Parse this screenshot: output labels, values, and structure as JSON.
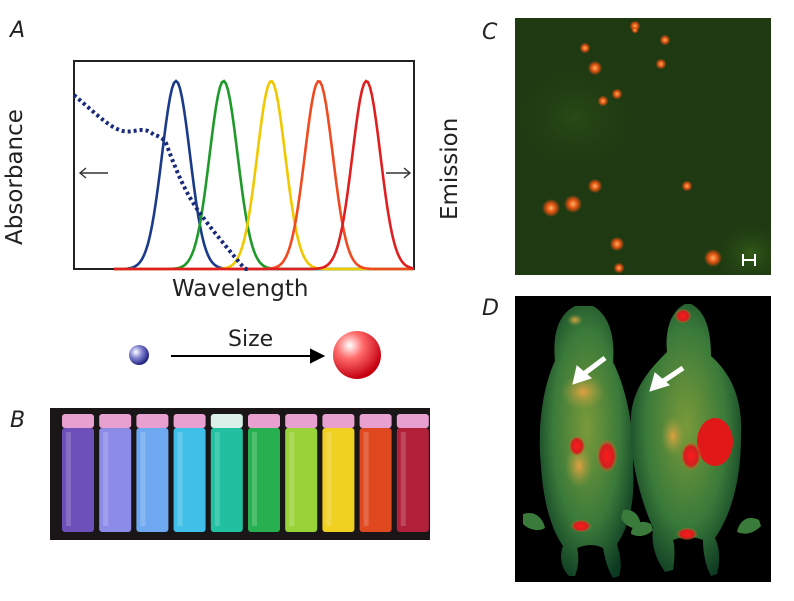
{
  "panels": {
    "a": "A",
    "b": "B",
    "c": "C",
    "d": "D"
  },
  "chart_data": {
    "type": "line",
    "xlabel": "Wavelength",
    "ylabel": "Absorbance",
    "y2label": "Emission",
    "series": [
      {
        "color": "#1a3a8a",
        "peak": 0.3
      },
      {
        "color": "#1f9a2a",
        "peak": 0.44
      },
      {
        "color": "#f0c800",
        "peak": 0.58
      },
      {
        "color": "#f04a20",
        "peak": 0.72
      },
      {
        "color": "#e02020",
        "peak": 0.86
      }
    ],
    "absorbance_color": "#1a2a7a"
  },
  "size_arrow": {
    "label": "Size"
  },
  "vials": {
    "colors": [
      "#6c4fb8",
      "#8c8ce8",
      "#6ea8f0",
      "#40c0e8",
      "#20c0a0",
      "#28b050",
      "#9ad23a",
      "#f0d020",
      "#e04820",
      "#b02038"
    ]
  },
  "microscopy": {
    "background": "#1f3a12"
  },
  "mice": {
    "background": "#000000"
  }
}
